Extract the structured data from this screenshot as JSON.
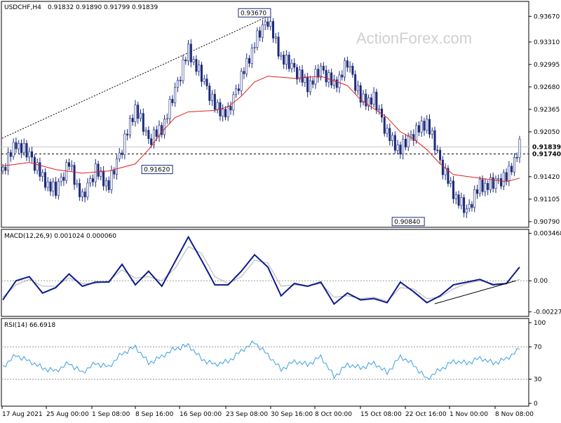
{
  "colors": {
    "price_bars": "#1c2a7a",
    "ma_line": "#e0201b",
    "macd_line": "#0b1a8c",
    "macd_signal": "#b0b0b0",
    "rsi_line": "#3aa0e0",
    "trend_line": "#000000",
    "grid_dash": "#9a9a9a",
    "frame": "#000000"
  },
  "watermark": "ActionForex.com",
  "chart_data": [
    {
      "type": "candlestick",
      "panel": "price",
      "title": "USDCHF,H4",
      "ohlc": {
        "open": "0.91832",
        "high": "0.91890",
        "low": "0.91799",
        "close": "0.91839"
      },
      "ylim": [
        0.9075,
        0.9384
      ],
      "yticks": [
        "0.93670",
        "0.93310",
        "0.92995",
        "0.92680",
        "0.92365",
        "0.92050",
        "0.91420",
        "0.91105",
        "0.90790"
      ],
      "price_labels": {
        "current": "0.91839",
        "dashed": "0.91740"
      },
      "annotations": [
        {
          "text": "0.93670",
          "value": 0.9367
        },
        {
          "text": "0.91620",
          "value": 0.9162
        },
        {
          "text": "0.90840",
          "value": 0.9084
        }
      ],
      "xticks": [
        "17 Aug 2021",
        "25 Aug 00:00",
        "1 Sep 08:00",
        "8 Sep 16:00",
        "16 Sep 00:00",
        "23 Sep 08:00",
        "30 Sep 16:00",
        "8 Oct 00:00",
        "15 Oct 08:00",
        "22 Oct 16:00",
        "1 Nov 00:00",
        "8 Nov 08:00"
      ],
      "close_path": [
        [
          0,
          0.915
        ],
        [
          5,
          0.919
        ],
        [
          10,
          0.917
        ],
        [
          15,
          0.914
        ],
        [
          20,
          0.912
        ],
        [
          25,
          0.916
        ],
        [
          30,
          0.911
        ],
        [
          35,
          0.915
        ],
        [
          40,
          0.913
        ],
        [
          45,
          0.918
        ],
        [
          50,
          0.924
        ],
        [
          55,
          0.919
        ],
        [
          60,
          0.921
        ],
        [
          65,
          0.926
        ],
        [
          70,
          0.932
        ],
        [
          75,
          0.928
        ],
        [
          80,
          0.924
        ],
        [
          85,
          0.923
        ],
        [
          90,
          0.928
        ],
        [
          95,
          0.933
        ],
        [
          100,
          0.936
        ],
        [
          105,
          0.931
        ],
        [
          110,
          0.929
        ],
        [
          115,
          0.927
        ],
        [
          120,
          0.929
        ],
        [
          125,
          0.927
        ],
        [
          130,
          0.93
        ],
        [
          135,
          0.925
        ],
        [
          140,
          0.925
        ],
        [
          145,
          0.92
        ],
        [
          150,
          0.918
        ],
        [
          155,
          0.92
        ],
        [
          160,
          0.922
        ],
        [
          165,
          0.916
        ],
        [
          170,
          0.912
        ],
        [
          175,
          0.909
        ],
        [
          180,
          0.913
        ],
        [
          185,
          0.913
        ],
        [
          190,
          0.914
        ],
        [
          195,
          0.9184
        ]
      ],
      "ma_path": [
        [
          0,
          0.9157
        ],
        [
          10,
          0.9162
        ],
        [
          20,
          0.9152
        ],
        [
          30,
          0.9147
        ],
        [
          40,
          0.915
        ],
        [
          50,
          0.916
        ],
        [
          55,
          0.918
        ],
        [
          60,
          0.9205
        ],
        [
          65,
          0.9225
        ],
        [
          70,
          0.9233
        ],
        [
          80,
          0.9235
        ],
        [
          85,
          0.924
        ],
        [
          90,
          0.9255
        ],
        [
          95,
          0.9275
        ],
        [
          100,
          0.9283
        ],
        [
          110,
          0.928
        ],
        [
          120,
          0.9283
        ],
        [
          130,
          0.927
        ],
        [
          135,
          0.925
        ],
        [
          145,
          0.9225
        ],
        [
          150,
          0.9205
        ],
        [
          155,
          0.9195
        ],
        [
          160,
          0.918
        ],
        [
          165,
          0.916
        ],
        [
          170,
          0.9145
        ],
        [
          180,
          0.914
        ],
        [
          190,
          0.9135
        ],
        [
          195,
          0.914
        ]
      ]
    },
    {
      "type": "line",
      "panel": "macd",
      "title": "MACD(12,26,9) 0.001024 0.000060",
      "ylim": [
        -0.0025,
        0.0036
      ],
      "yticks": [
        "0.003468",
        "0.00",
        "-0.002274"
      ],
      "reference_level": "0.00",
      "trendline": [
        [
          163,
          -0.00168
        ],
        [
          192,
          0.0
        ]
      ],
      "series": [
        {
          "role": "macd",
          "values": [
            [
              0,
              -0.0014
            ],
            [
              5,
              0.0
            ],
            [
              10,
              0.0003
            ],
            [
              15,
              -0.0009
            ],
            [
              20,
              -0.0005
            ],
            [
              25,
              0.0005
            ],
            [
              30,
              -0.0004
            ],
            [
              35,
              -0.0001
            ],
            [
              40,
              -0.0001
            ],
            [
              45,
              0.0012
            ],
            [
              50,
              -0.0003
            ],
            [
              55,
              0.0007
            ],
            [
              60,
              -0.0004
            ],
            [
              65,
              0.0014
            ],
            [
              70,
              0.0032
            ],
            [
              75,
              0.0015
            ],
            [
              80,
              -0.0003
            ],
            [
              85,
              -0.0003
            ],
            [
              90,
              0.0007
            ],
            [
              95,
              0.0019
            ],
            [
              100,
              0.001
            ],
            [
              105,
              -0.0011
            ],
            [
              110,
              -0.0002
            ],
            [
              115,
              -0.0004
            ],
            [
              120,
              -0.0001
            ],
            [
              125,
              -0.0017
            ],
            [
              130,
              -0.0009
            ],
            [
              135,
              -0.0014
            ],
            [
              140,
              -0.0013
            ],
            [
              145,
              -0.0016
            ],
            [
              150,
              -0.0001
            ],
            [
              155,
              -0.0008
            ],
            [
              160,
              -0.0016
            ],
            [
              165,
              -0.0011
            ],
            [
              170,
              -0.0003
            ],
            [
              175,
              -0.0001
            ],
            [
              180,
              0.0001
            ],
            [
              185,
              -0.0003
            ],
            [
              190,
              -0.0002
            ],
            [
              195,
              0.001
            ]
          ]
        },
        {
          "role": "signal",
          "values": [
            [
              0,
              -0.0012
            ],
            [
              5,
              -0.0003
            ],
            [
              10,
              0.0001
            ],
            [
              15,
              -0.0004
            ],
            [
              20,
              -0.0004
            ],
            [
              25,
              0.0002
            ],
            [
              30,
              -0.0002
            ],
            [
              35,
              -0.0002
            ],
            [
              40,
              0.0
            ],
            [
              45,
              0.0008
            ],
            [
              50,
              0.0002
            ],
            [
              55,
              0.0003
            ],
            [
              60,
              0.0
            ],
            [
              65,
              0.0009
            ],
            [
              70,
              0.0025
            ],
            [
              75,
              0.002
            ],
            [
              80,
              0.0003
            ],
            [
              85,
              -0.0002
            ],
            [
              90,
              0.0003
            ],
            [
              95,
              0.0015
            ],
            [
              100,
              0.0013
            ],
            [
              105,
              -0.0004
            ],
            [
              110,
              -0.0003
            ],
            [
              115,
              -0.0004
            ],
            [
              120,
              -0.0002
            ],
            [
              125,
              -0.0012
            ],
            [
              130,
              -0.0011
            ],
            [
              135,
              -0.0013
            ],
            [
              140,
              -0.0012
            ],
            [
              145,
              -0.0015
            ],
            [
              150,
              -0.0005
            ],
            [
              155,
              -0.0006
            ],
            [
              160,
              -0.0013
            ],
            [
              165,
              -0.0012
            ],
            [
              170,
              -0.0006
            ],
            [
              175,
              -0.0002
            ],
            [
              180,
              0.0
            ],
            [
              185,
              -0.0002
            ],
            [
              190,
              -0.0002
            ],
            [
              195,
              0.0001
            ]
          ]
        }
      ]
    },
    {
      "type": "line",
      "panel": "rsi",
      "title": "RSI(14) 66.6918",
      "ylim": [
        0,
        100
      ],
      "yticks": [
        "100",
        "70",
        "30",
        "0"
      ],
      "levels": [
        70,
        30
      ],
      "series": [
        {
          "role": "rsi",
          "values": [
            [
              0,
              45
            ],
            [
              5,
              60
            ],
            [
              10,
              52
            ],
            [
              15,
              44
            ],
            [
              20,
              40
            ],
            [
              25,
              50
            ],
            [
              30,
              38
            ],
            [
              35,
              50
            ],
            [
              40,
              45
            ],
            [
              45,
              62
            ],
            [
              50,
              70
            ],
            [
              55,
              50
            ],
            [
              60,
              58
            ],
            [
              65,
              68
            ],
            [
              70,
              72
            ],
            [
              75,
              55
            ],
            [
              80,
              48
            ],
            [
              85,
              52
            ],
            [
              90,
              65
            ],
            [
              95,
              76
            ],
            [
              100,
              60
            ],
            [
              105,
              42
            ],
            [
              110,
              52
            ],
            [
              115,
              48
            ],
            [
              120,
              58
            ],
            [
              125,
              33
            ],
            [
              130,
              48
            ],
            [
              135,
              44
            ],
            [
              140,
              50
            ],
            [
              145,
              38
            ],
            [
              150,
              58
            ],
            [
              155,
              48
            ],
            [
              160,
              30
            ],
            [
              165,
              42
            ],
            [
              170,
              52
            ],
            [
              175,
              50
            ],
            [
              180,
              56
            ],
            [
              185,
              50
            ],
            [
              190,
              55
            ],
            [
              195,
              67
            ]
          ]
        }
      ]
    }
  ]
}
